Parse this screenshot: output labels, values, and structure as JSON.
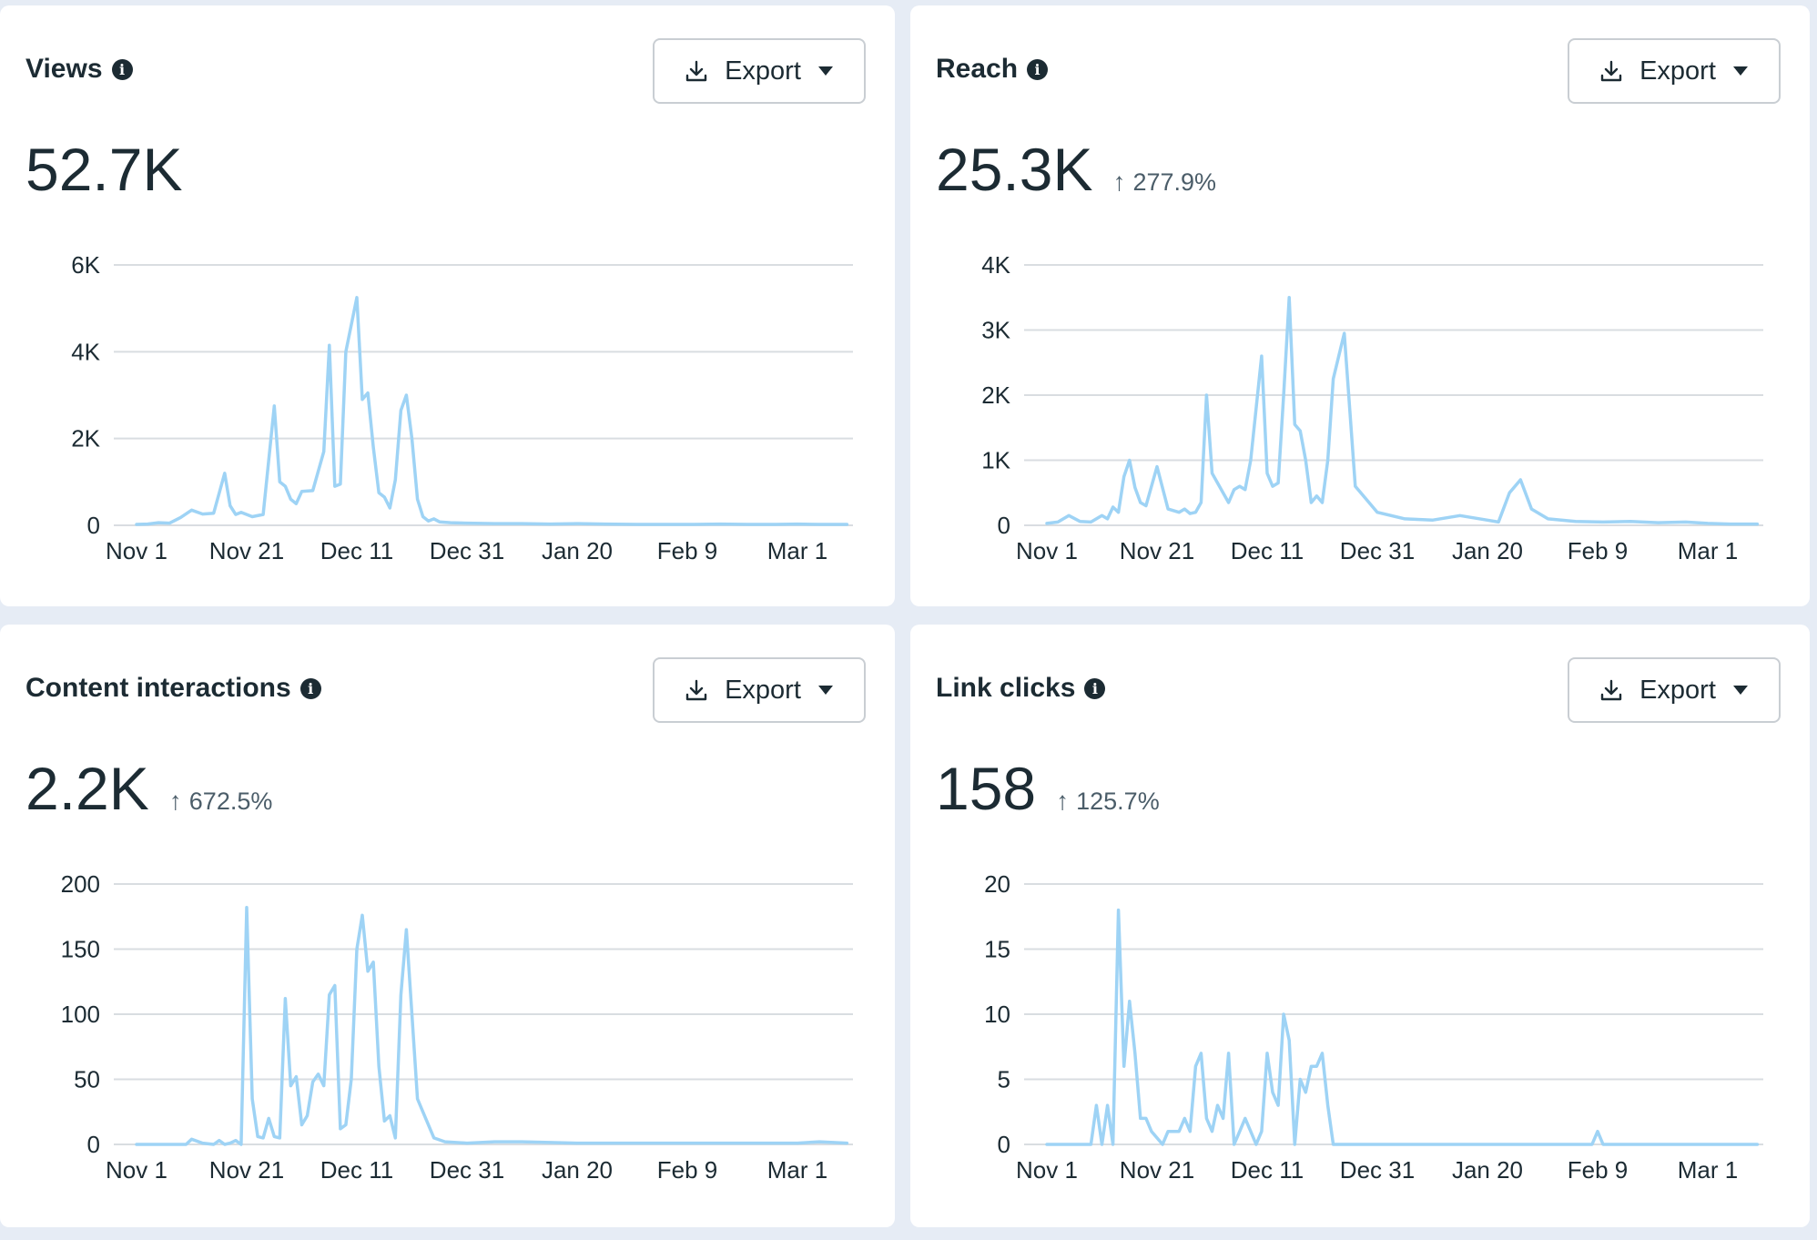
{
  "x_ticks": [
    "Nov 1",
    "Nov 21",
    "Dec 11",
    "Dec 31",
    "Jan 20",
    "Feb 9",
    "Mar 1"
  ],
  "colors": {
    "line": "#9ed3f5",
    "grid": "#d9dde1",
    "text": "#1c2b33",
    "muted": "#4b5d69"
  },
  "cards": [
    {
      "title": "Views",
      "info_icon": "info-icon",
      "export_label": "Export",
      "value": "52.7K",
      "change": "",
      "change_icon": "arrow-up-icon"
    },
    {
      "title": "Reach",
      "info_icon": "info-icon",
      "export_label": "Export",
      "value": "25.3K",
      "change": "277.9%",
      "change_icon": "arrow-up-icon"
    },
    {
      "title": "Content interactions",
      "info_icon": "info-icon",
      "export_label": "Export",
      "value": "2.2K",
      "change": "672.5%",
      "change_icon": "arrow-up-icon"
    },
    {
      "title": "Link clicks",
      "info_icon": "info-icon",
      "export_label": "Export",
      "value": "158",
      "change": "125.7%",
      "change_icon": "arrow-up-icon"
    }
  ],
  "chart_data": [
    {
      "type": "line",
      "title": "Views",
      "x_ticks": [
        "Nov 1",
        "Nov 21",
        "Dec 11",
        "Dec 31",
        "Jan 20",
        "Feb 9",
        "Mar 1"
      ],
      "y_ticks": [
        "0",
        "2K",
        "4K",
        "6K"
      ],
      "ylim": [
        0,
        6000
      ],
      "grid": true,
      "x_dates": [
        "Nov 1",
        "Nov 3",
        "Nov 5",
        "Nov 7",
        "Nov 9",
        "Nov 11",
        "Nov 13",
        "Nov 15",
        "Nov 17",
        "Nov 18",
        "Nov 19",
        "Nov 20",
        "Nov 22",
        "Nov 24",
        "Nov 26",
        "Nov 27",
        "Nov 28",
        "Nov 29",
        "Nov 30",
        "Dec 1",
        "Dec 3",
        "Dec 5",
        "Dec 6",
        "Dec 7",
        "Dec 8",
        "Dec 9",
        "Dec 11",
        "Dec 12",
        "Dec 13",
        "Dec 14",
        "Dec 15",
        "Dec 16",
        "Dec 17",
        "Dec 18",
        "Dec 19",
        "Dec 20",
        "Dec 21",
        "Dec 22",
        "Dec 23",
        "Dec 24",
        "Dec 25",
        "Dec 26",
        "Dec 28",
        "Dec 31",
        "Jan 5",
        "Jan 10",
        "Jan 15",
        "Jan 20",
        "Jan 25",
        "Jan 31",
        "Feb 5",
        "Feb 10",
        "Feb 15",
        "Feb 20",
        "Feb 25",
        "Mar 1",
        "Mar 5",
        "Mar 10"
      ],
      "values": [
        20,
        30,
        60,
        50,
        180,
        350,
        260,
        280,
        1200,
        450,
        250,
        300,
        200,
        250,
        2750,
        1000,
        900,
        600,
        500,
        780,
        800,
        1700,
        4150,
        900,
        950,
        4000,
        5250,
        2900,
        3050,
        1800,
        750,
        650,
        400,
        1050,
        2650,
        3000,
        2000,
        600,
        200,
        100,
        150,
        80,
        60,
        50,
        40,
        40,
        30,
        40,
        30,
        20,
        20,
        20,
        30,
        20,
        20,
        30,
        20,
        20
      ]
    },
    {
      "type": "line",
      "title": "Reach",
      "x_ticks": [
        "Nov 1",
        "Nov 21",
        "Dec 11",
        "Dec 31",
        "Jan 20",
        "Feb 9",
        "Mar 1"
      ],
      "y_ticks": [
        "0",
        "1K",
        "2K",
        "3K",
        "4K"
      ],
      "ylim": [
        0,
        4000
      ],
      "grid": true,
      "x_dates": [
        "Nov 1",
        "Nov 3",
        "Nov 5",
        "Nov 7",
        "Nov 9",
        "Nov 11",
        "Nov 12",
        "Nov 13",
        "Nov 14",
        "Nov 15",
        "Nov 16",
        "Nov 17",
        "Nov 18",
        "Nov 19",
        "Nov 21",
        "Nov 23",
        "Nov 25",
        "Nov 26",
        "Nov 27",
        "Nov 28",
        "Nov 29",
        "Nov 30",
        "Dec 1",
        "Dec 2",
        "Dec 4",
        "Dec 5",
        "Dec 6",
        "Dec 7",
        "Dec 8",
        "Dec 10",
        "Dec 11",
        "Dec 12",
        "Dec 13",
        "Dec 14",
        "Dec 15",
        "Dec 16",
        "Dec 17",
        "Dec 18",
        "Dec 19",
        "Dec 20",
        "Dec 21",
        "Dec 22",
        "Dec 23",
        "Dec 25",
        "Dec 27",
        "Dec 31",
        "Jan 5",
        "Jan 10",
        "Jan 15",
        "Jan 20",
        "Jan 22",
        "Jan 24",
        "Jan 26",
        "Jan 28",
        "Jan 31",
        "Feb 5",
        "Feb 10",
        "Feb 15",
        "Feb 20",
        "Feb 25",
        "Mar 1",
        "Mar 5",
        "Mar 10"
      ],
      "values": [
        30,
        50,
        150,
        60,
        50,
        150,
        100,
        280,
        200,
        750,
        1000,
        580,
        350,
        300,
        900,
        250,
        200,
        250,
        180,
        200,
        350,
        2000,
        800,
        650,
        350,
        550,
        600,
        550,
        1000,
        2600,
        800,
        600,
        650,
        2000,
        3500,
        1550,
        1450,
        1000,
        350,
        450,
        350,
        1000,
        2250,
        2950,
        600,
        200,
        100,
        80,
        150,
        80,
        50,
        500,
        700,
        250,
        100,
        60,
        50,
        60,
        40,
        50,
        30,
        20,
        20
      ]
    },
    {
      "type": "line",
      "title": "Content interactions",
      "x_ticks": [
        "Nov 1",
        "Nov 21",
        "Dec 11",
        "Dec 31",
        "Jan 20",
        "Feb 9",
        "Mar 1"
      ],
      "y_ticks": [
        "0",
        "50",
        "100",
        "150",
        "200"
      ],
      "ylim": [
        0,
        200
      ],
      "grid": true,
      "x_dates": [
        "Nov 1",
        "Nov 5",
        "Nov 10",
        "Nov 11",
        "Nov 13",
        "Nov 15",
        "Nov 16",
        "Nov 17",
        "Nov 18",
        "Nov 19",
        "Nov 20",
        "Nov 21",
        "Nov 22",
        "Nov 23",
        "Nov 24",
        "Nov 25",
        "Nov 26",
        "Nov 27",
        "Nov 28",
        "Nov 29",
        "Nov 30",
        "Dec 1",
        "Dec 2",
        "Dec 3",
        "Dec 4",
        "Dec 5",
        "Dec 6",
        "Dec 7",
        "Dec 8",
        "Dec 9",
        "Dec 10",
        "Dec 11",
        "Dec 12",
        "Dec 13",
        "Dec 14",
        "Dec 15",
        "Dec 16",
        "Dec 17",
        "Dec 18",
        "Dec 19",
        "Dec 20",
        "Dec 21",
        "Dec 22",
        "Dec 23",
        "Dec 25",
        "Dec 27",
        "Dec 31",
        "Jan 5",
        "Jan 10",
        "Jan 20",
        "Feb 5",
        "Feb 20",
        "Mar 1",
        "Mar 5",
        "Mar 10"
      ],
      "values": [
        0,
        0,
        0,
        4,
        1,
        0,
        3,
        0,
        1,
        3,
        0,
        182,
        35,
        6,
        5,
        20,
        6,
        5,
        112,
        45,
        52,
        15,
        22,
        48,
        54,
        45,
        115,
        122,
        12,
        15,
        50,
        150,
        176,
        133,
        140,
        60,
        18,
        22,
        5,
        115,
        165,
        100,
        35,
        25,
        5,
        2,
        1,
        2,
        2,
        1,
        1,
        1,
        1,
        2,
        1
      ]
    },
    {
      "type": "line",
      "title": "Link clicks",
      "x_ticks": [
        "Nov 1",
        "Nov 21",
        "Dec 11",
        "Dec 31",
        "Jan 20",
        "Feb 9",
        "Mar 1"
      ],
      "y_ticks": [
        "0",
        "5",
        "10",
        "15",
        "20"
      ],
      "ylim": [
        0,
        20
      ],
      "grid": true,
      "x_dates": [
        "Nov 1",
        "Nov 5",
        "Nov 9",
        "Nov 10",
        "Nov 11",
        "Nov 12",
        "Nov 13",
        "Nov 14",
        "Nov 15",
        "Nov 16",
        "Nov 17",
        "Nov 18",
        "Nov 19",
        "Nov 20",
        "Nov 22",
        "Nov 23",
        "Nov 25",
        "Nov 26",
        "Nov 27",
        "Nov 28",
        "Nov 29",
        "Nov 30",
        "Dec 1",
        "Dec 2",
        "Dec 3",
        "Dec 4",
        "Dec 5",
        "Dec 6",
        "Dec 7",
        "Dec 8",
        "Dec 9",
        "Dec 10",
        "Dec 11",
        "Dec 12",
        "Dec 13",
        "Dec 14",
        "Dec 15",
        "Dec 16",
        "Dec 17",
        "Dec 18",
        "Dec 19",
        "Dec 20",
        "Dec 21",
        "Dec 22",
        "Dec 23",
        "Dec 24",
        "Dec 31",
        "Jan 10",
        "Jan 20",
        "Feb 1",
        "Feb 8",
        "Feb 9",
        "Feb 10",
        "Feb 20",
        "Mar 1",
        "Mar 10"
      ],
      "values": [
        0,
        0,
        0,
        3,
        0,
        3,
        0,
        18,
        6,
        11,
        7,
        2,
        2,
        1,
        0,
        1,
        1,
        2,
        1,
        6,
        7,
        2,
        1,
        3,
        2,
        7,
        0,
        1,
        2,
        1,
        0,
        1,
        7,
        4,
        3,
        10,
        8,
        0,
        5,
        4,
        6,
        6,
        7,
        3,
        0,
        0,
        0,
        0,
        0,
        0,
        0,
        1,
        0,
        0,
        0,
        0
      ]
    }
  ]
}
